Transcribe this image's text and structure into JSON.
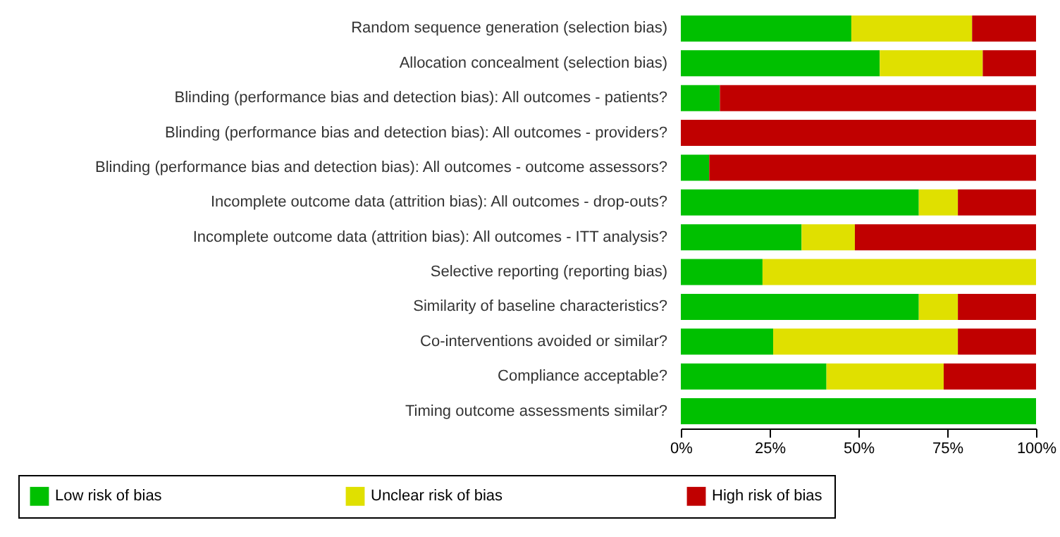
{
  "chart_data": {
    "type": "bar",
    "orientation": "horizontal",
    "stacked": true,
    "categories": [
      "Random sequence generation (selection bias)",
      "Allocation concealment (selection bias)",
      "Blinding (performance bias and detection bias): All outcomes - patients?",
      "Blinding (performance bias and detection bias): All outcomes - providers?",
      "Blinding (performance bias and detection bias): All outcomes - outcome assessors?",
      "Incomplete outcome data (attrition bias): All outcomes - drop-outs?",
      "Incomplete outcome data (attrition bias): All outcomes - ITT analysis?",
      "Selective reporting (reporting bias)",
      "Similarity of baseline characteristics?",
      "Co-interventions avoided or similar?",
      "Compliance acceptable?",
      "Timing outcome assessments similar?"
    ],
    "series": [
      {
        "name": "Low risk of bias",
        "color": "#00c000",
        "values": [
          48,
          56,
          11,
          0,
          8,
          67,
          34,
          23,
          67,
          26,
          41,
          100
        ]
      },
      {
        "name": "Unclear risk of bias",
        "color": "#e0e000",
        "values": [
          34,
          29,
          0,
          0,
          0,
          11,
          15,
          77,
          11,
          52,
          33,
          0
        ]
      },
      {
        "name": "High risk of bias",
        "color": "#c00000",
        "values": [
          18,
          15,
          89,
          100,
          92,
          22,
          51,
          0,
          22,
          22,
          26,
          0
        ]
      }
    ],
    "xlim": [
      0,
      100
    ],
    "xticks": [
      {
        "value": 0,
        "label": "0%"
      },
      {
        "value": 25,
        "label": "25%"
      },
      {
        "value": 50,
        "label": "50%"
      },
      {
        "value": 75,
        "label": "75%"
      },
      {
        "value": 100,
        "label": "100%"
      }
    ],
    "grid": false,
    "legend": "bottom"
  }
}
